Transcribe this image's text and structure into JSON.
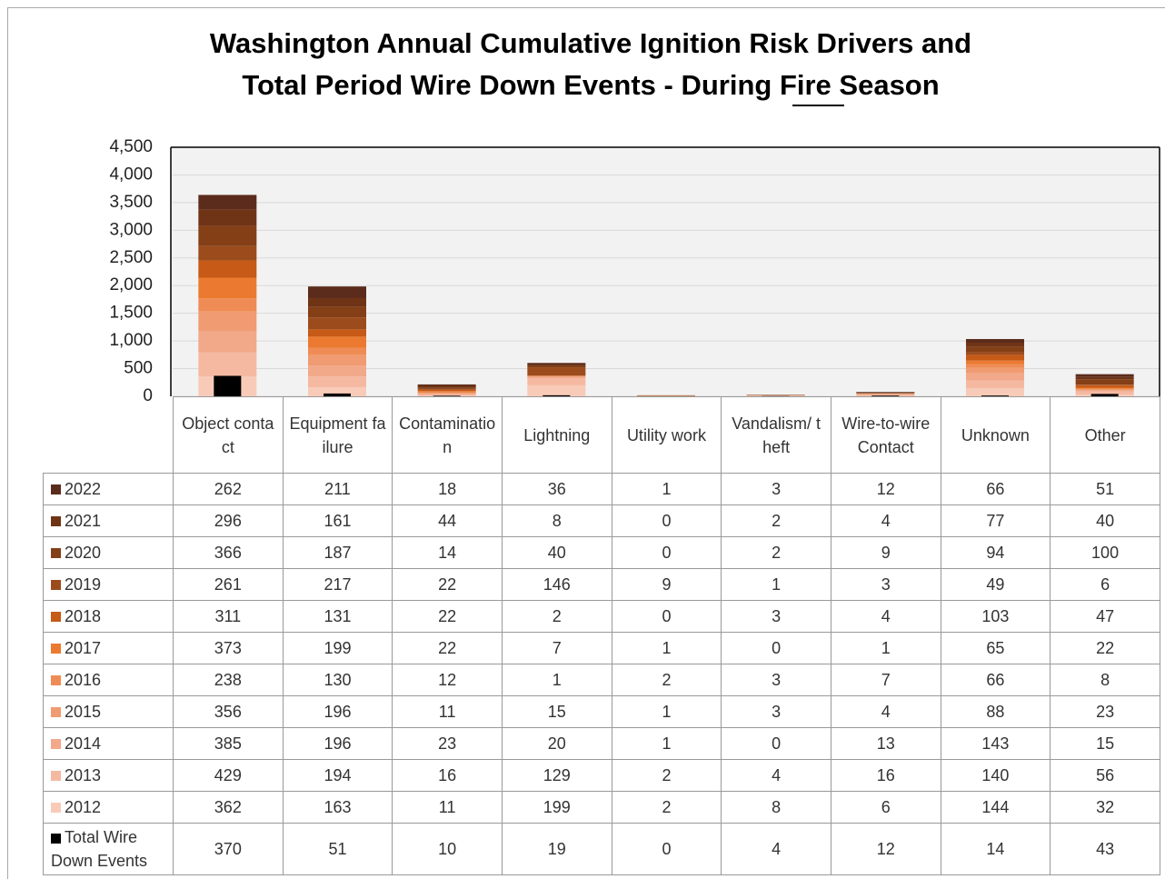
{
  "chart_data": {
    "type": "stacked-bar",
    "title": [
      "Washington Annual Cumulative Ignition Risk Drivers and",
      "Total Period Wire Down Events - During Fire Season"
    ],
    "categories": [
      "Object contact",
      "Equipment failure",
      "Contamination",
      "Lightning",
      "Utility work",
      "Vandalism/ theft",
      "Wire-to-wire Contact",
      "Unknown",
      "Other"
    ],
    "ylim": [
      0,
      4500
    ],
    "yticks": [
      0,
      500,
      {
        "value": 1000,
        "label": "1,000"
      },
      {
        "value": 1500,
        "label": "1,500"
      },
      {
        "value": 2000,
        "label": "2,000"
      },
      {
        "value": 2500,
        "label": "2,500"
      },
      {
        "value": 3000,
        "label": "3,000"
      },
      {
        "value": 3500,
        "label": "3,500"
      },
      {
        "value": 4000,
        "label": "4,000"
      },
      {
        "value": 4500,
        "label": "4,500"
      }
    ],
    "grid": true,
    "series": [
      {
        "name": "2022",
        "color": "#5b2c1c",
        "values": [
          262,
          211,
          18,
          36,
          1,
          3,
          12,
          66,
          51
        ]
      },
      {
        "name": "2021",
        "color": "#6e3415",
        "values": [
          296,
          161,
          44,
          8,
          0,
          2,
          4,
          77,
          40
        ]
      },
      {
        "name": "2020",
        "color": "#843f17",
        "values": [
          366,
          187,
          14,
          40,
          0,
          2,
          9,
          94,
          100
        ]
      },
      {
        "name": "2019",
        "color": "#9c4c1c",
        "values": [
          261,
          217,
          22,
          146,
          9,
          1,
          3,
          49,
          6
        ]
      },
      {
        "name": "2018",
        "color": "#c65a16",
        "values": [
          311,
          131,
          22,
          2,
          0,
          3,
          4,
          103,
          47
        ]
      },
      {
        "name": "2017",
        "color": "#eb7a30",
        "values": [
          373,
          199,
          22,
          7,
          1,
          0,
          1,
          65,
          22
        ]
      },
      {
        "name": "2016",
        "color": "#ef8c55",
        "values": [
          238,
          130,
          12,
          1,
          2,
          3,
          7,
          66,
          8
        ]
      },
      {
        "name": "2015",
        "color": "#f09b72",
        "values": [
          356,
          196,
          11,
          15,
          1,
          3,
          4,
          88,
          23
        ]
      },
      {
        "name": "2014",
        "color": "#f2a98a",
        "values": [
          385,
          196,
          23,
          20,
          1,
          0,
          13,
          143,
          15
        ]
      },
      {
        "name": "2013",
        "color": "#f5b9a2",
        "values": [
          429,
          194,
          16,
          129,
          2,
          4,
          16,
          140,
          56
        ]
      },
      {
        "name": "2012",
        "color": "#f8cbb8",
        "values": [
          362,
          163,
          11,
          199,
          2,
          8,
          6,
          144,
          32
        ]
      },
      {
        "name": "Total Wire Down Events",
        "color": "#000000",
        "stacked": false,
        "values": [
          370,
          51,
          10,
          19,
          0,
          4,
          12,
          14,
          43
        ]
      }
    ]
  }
}
